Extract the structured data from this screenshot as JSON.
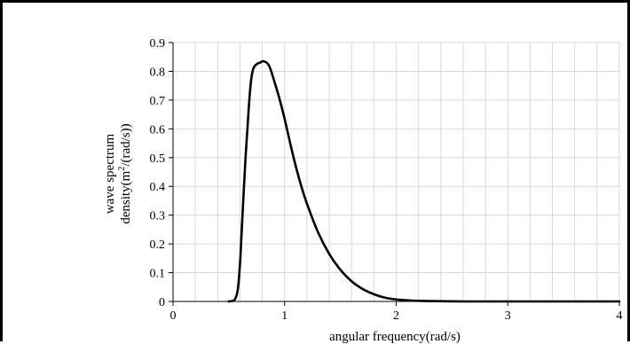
{
  "chart_data": {
    "type": "line",
    "title": "",
    "xlabel": "angular frequency(rad/s)",
    "ylabel_line1": "wave spectrum",
    "ylabel_line2_prefix": "density(m",
    "ylabel_line2_sup": "2",
    "ylabel_line2_suffix": "/(rad/s))",
    "xlim": [
      0,
      4
    ],
    "ylim": [
      0,
      0.9
    ],
    "xticks": [
      0,
      1,
      2,
      3,
      4
    ],
    "xtick_labels": [
      "0",
      "1",
      "2",
      "3",
      "4"
    ],
    "yticks": [
      0,
      0.1,
      0.2,
      0.3,
      0.4,
      0.5,
      0.6,
      0.7,
      0.8,
      0.9
    ],
    "ytick_labels": [
      "0",
      "0.1",
      "0.2",
      "0.3",
      "0.4",
      "0.5",
      "0.6",
      "0.7",
      "0.8",
      "0.9"
    ],
    "x_minor_step": 0.2,
    "grid": true,
    "legend": "none",
    "line_color": "#000000",
    "grid_color": "#d9d9d9",
    "series": [
      {
        "x": [
          0.5,
          0.55,
          0.58,
          0.6,
          0.62,
          0.65,
          0.68,
          0.7,
          0.72,
          0.75,
          0.78,
          0.8,
          0.82,
          0.84,
          0.86,
          0.88,
          0.9,
          0.95,
          1.0,
          1.05,
          1.1,
          1.15,
          1.2,
          1.3,
          1.4,
          1.5,
          1.6,
          1.7,
          1.8,
          1.9,
          2.0,
          2.1,
          2.2,
          2.4,
          2.6,
          3.0,
          3.5,
          4.0
        ],
        "values": [
          0.0,
          0.005,
          0.04,
          0.13,
          0.28,
          0.5,
          0.68,
          0.77,
          0.81,
          0.825,
          0.83,
          0.835,
          0.834,
          0.83,
          0.82,
          0.8,
          0.775,
          0.71,
          0.635,
          0.55,
          0.47,
          0.4,
          0.34,
          0.24,
          0.165,
          0.11,
          0.07,
          0.043,
          0.025,
          0.013,
          0.007,
          0.004,
          0.002,
          0.001,
          0.0,
          0.0,
          0.0,
          0.0
        ]
      }
    ]
  }
}
